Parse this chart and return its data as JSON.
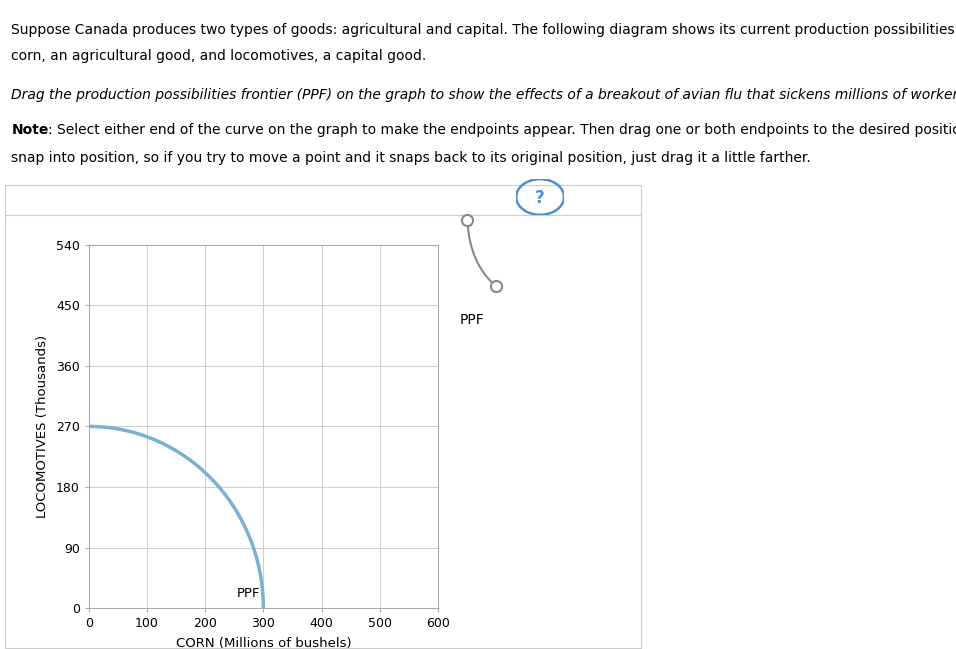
{
  "xlabel": "CORN (Millions of bushels)",
  "ylabel": "LOCOMOTIVES (Thousands)",
  "xlim": [
    0,
    600
  ],
  "ylim": [
    0,
    540
  ],
  "xticks": [
    0,
    100,
    200,
    300,
    400,
    500,
    600
  ],
  "yticks": [
    0,
    90,
    180,
    270,
    360,
    450,
    540
  ],
  "ppf_start_x": 0,
  "ppf_start_y": 270,
  "ppf_end_x": 300,
  "ppf_end_y": 0,
  "ppf_color": "#7BAFD4",
  "ppf_label": "PPF",
  "grid_color": "#CCCCCC",
  "background_color": "#FFFFFF",
  "plot_bg_color": "#FFFFFF",
  "question_circle_color": "#4A90D9",
  "legend_icon_color": "#888888",
  "panel_border_color": "#CCCCCC",
  "fig_width": 9.56,
  "fig_height": 6.49,
  "text_line1": "Suppose Canada produces two types of goods: agricultural and capital. The following diagram shows its current production possibilities frontier for",
  "text_line2": "corn, an agricultural good, and locomotives, a capital good.",
  "text_italic": "Drag the production possibilities frontier (PPF) on the graph to show the effects of a breakout of avian flu that sickens millions of workers.",
  "note_bold_part": "Note",
  "note_normal_part": ": Select either end of the curve on the graph to make the endpoints appear. Then drag one or both endpoints to the desired position. Points will",
  "note_line2": "snap into position, so if you try to move a point and it snaps back to its original position, just drag it a little farther."
}
